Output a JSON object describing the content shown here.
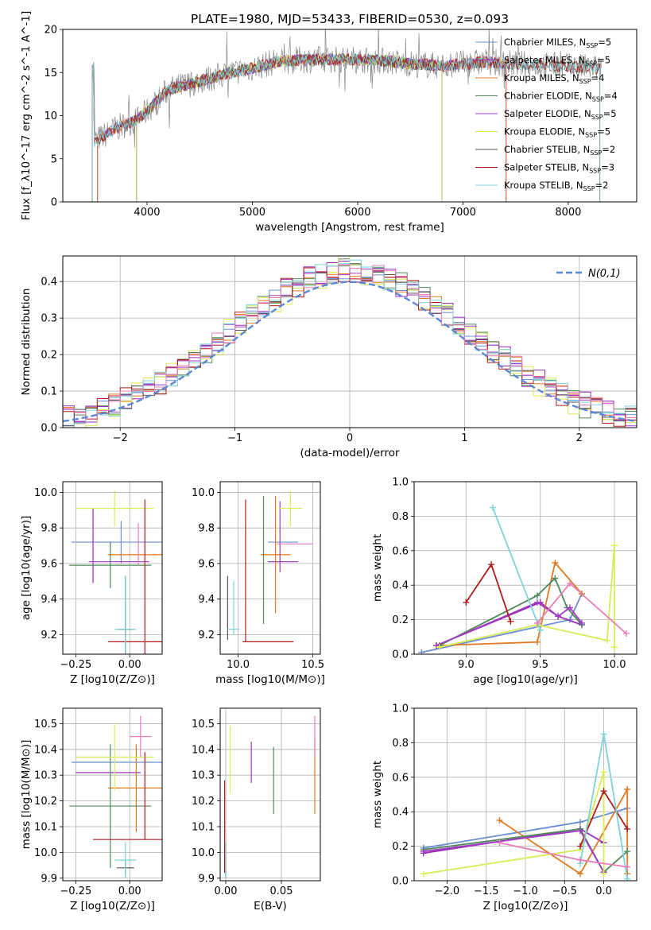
{
  "figure": {
    "title": "PLATE=1980, MJD=53433, FIBERID=0530, z=0.093"
  },
  "palette": {
    "Chabrier MILES": "#6b8fd6",
    "Salpeter MILES": "#9a2db5",
    "Kroupa MILES": "#e07b20",
    "Chabrier ELODIE": "#4f8a5a",
    "Salpeter ELODIE": "#a23bc4",
    "Kroupa ELODIE": "#d7ec59",
    "Chabrier STELIB": "#555555",
    "Salpeter STELIB": "#b01c1c",
    "Kroupa STELIB": "#7dd3d8",
    "pink": "#e87fb8",
    "normal_curve": "#5b86d6"
  },
  "chart_data": [
    {
      "id": "spectrum",
      "type": "line",
      "xlabel": "wavelength [Angstrom, rest frame]",
      "ylabel": "Flux [f_λ10^-17 erg cm^-2 s^-1 A^-1]",
      "xlim": [
        3200,
        8650
      ],
      "ylim": [
        0,
        20
      ],
      "xticks": [
        4000,
        5000,
        6000,
        7000,
        8000
      ],
      "yticks": [
        0,
        5,
        10,
        15,
        20
      ],
      "grid": false,
      "legend_position": "top-right",
      "legend": [
        {
          "name": "Chabrier MILES",
          "label": "Chabrier MILES, N",
          "sub": "SSP",
          "n": "=5"
        },
        {
          "name": "Salpeter MILES",
          "label": "Salpeter MILES, N",
          "sub": "SSP",
          "n": "=5"
        },
        {
          "name": "Kroupa MILES",
          "label": "Kroupa MILES, N",
          "sub": "SSP",
          "n": "=4"
        },
        {
          "name": "Chabrier ELODIE",
          "label": "Chabrier ELODIE, N",
          "sub": "SSP",
          "n": "=4"
        },
        {
          "name": "Salpeter ELODIE",
          "label": "Salpeter ELODIE, N",
          "sub": "SSP",
          "n": "=5"
        },
        {
          "name": "Kroupa ELODIE",
          "label": "Kroupa ELODIE, N",
          "sub": "SSP",
          "n": "=5"
        },
        {
          "name": "Chabrier STELIB",
          "label": "Chabrier STELIB, N",
          "sub": "SSP",
          "n": "=2"
        },
        {
          "name": "Salpeter STELIB",
          "label": "Salpeter STELIB, N",
          "sub": "SSP",
          "n": "=3"
        },
        {
          "name": "Kroupa STELIB",
          "label": "Kroupa STELIB, N",
          "sub": "SSP",
          "n": "=2"
        }
      ],
      "continuum": [
        [
          3500,
          7.0
        ],
        [
          3700,
          8.5
        ],
        [
          3900,
          9.5
        ],
        [
          4000,
          10.5
        ],
        [
          4200,
          13.0
        ],
        [
          4500,
          14.0
        ],
        [
          4800,
          15.0
        ],
        [
          5000,
          15.5
        ],
        [
          5200,
          16.2
        ],
        [
          5500,
          16.5
        ],
        [
          6000,
          16.5
        ],
        [
          6300,
          16.3
        ],
        [
          6500,
          16.0
        ],
        [
          6800,
          15.8
        ],
        [
          7000,
          16.0
        ],
        [
          7200,
          16.2
        ],
        [
          7500,
          16.0
        ],
        [
          8000,
          15.7
        ],
        [
          8300,
          15.5
        ]
      ],
      "model_ranges": [
        {
          "name": "Chabrier MILES",
          "x0": 3530,
          "x1": 7410
        },
        {
          "name": "Salpeter MILES",
          "x0": 3530,
          "x1": 7410
        },
        {
          "name": "Kroupa MILES",
          "x0": 3530,
          "x1": 7410
        },
        {
          "name": "Chabrier ELODIE",
          "x0": 3900,
          "x1": 6800
        },
        {
          "name": "Salpeter ELODIE",
          "x0": 3900,
          "x1": 6800
        },
        {
          "name": "Kroupa ELODIE",
          "x0": 3900,
          "x1": 6800
        },
        {
          "name": "Chabrier STELIB",
          "x0": 3480,
          "x1": 8300
        },
        {
          "name": "Salpeter STELIB",
          "x0": 3480,
          "x1": 8300
        },
        {
          "name": "Kroupa STELIB",
          "x0": 3480,
          "x1": 8300
        }
      ]
    },
    {
      "id": "residuals",
      "type": "histogram",
      "xlabel": "(data-model)/error",
      "ylabel": "Normed distribution",
      "xlim": [
        -2.5,
        2.5
      ],
      "ylim": [
        0,
        0.47
      ],
      "xticks": [
        -2,
        -1,
        0,
        1,
        2
      ],
      "yticks": [
        0.0,
        0.1,
        0.2,
        0.3,
        0.4
      ],
      "grid": true,
      "legend_position": "top-right",
      "normal_label": "N(0,1)",
      "bins": 50,
      "series": [
        {
          "name": "Chabrier MILES",
          "jitter": 0.011
        },
        {
          "name": "Salpeter MILES",
          "jitter": 0.017
        },
        {
          "name": "Kroupa MILES",
          "jitter": 0.014
        },
        {
          "name": "Chabrier ELODIE",
          "jitter": 0.019
        },
        {
          "name": "Salpeter ELODIE",
          "jitter": 0.012
        },
        {
          "name": "Kroupa ELODIE",
          "jitter": 0.021
        },
        {
          "name": "Chabrier STELIB",
          "jitter": 0.013
        },
        {
          "name": "Salpeter STELIB",
          "jitter": 0.018
        },
        {
          "name": "Kroupa STELIB",
          "jitter": 0.016
        },
        {
          "name": "pink",
          "jitter": 0.015
        }
      ]
    },
    {
      "id": "age_vs_Z",
      "type": "errorbar",
      "xlabel": "Z [log10(Z/Z⊙)]",
      "ylabel": "age  [log10(age/yr)]",
      "xlim": [
        -0.31,
        0.15
      ],
      "ylim": [
        9.09,
        10.06
      ],
      "xticks": [
        -0.25,
        0.0
      ],
      "yticks": [
        9.2,
        9.4,
        9.6,
        9.8,
        10.0
      ],
      "grid": true,
      "points": [
        {
          "c": "Chabrier MILES",
          "x": -0.04,
          "xerr": 0.23,
          "y": 9.72,
          "yerr": 0.12
        },
        {
          "c": "Salpeter MILES",
          "x": -0.17,
          "xerr": 0.0,
          "y": 9.7,
          "yerr": 0.21
        },
        {
          "c": "Kroupa MILES",
          "x": 0.03,
          "xerr": 0.13,
          "y": 9.65,
          "yerr": 0.0
        },
        {
          "c": "Chabrier ELODIE",
          "x": -0.09,
          "xerr": 0.19,
          "y": 9.59,
          "yerr": 0.13
        },
        {
          "c": "Salpeter ELODIE",
          "x": -0.05,
          "xerr": 0.14,
          "y": 9.61,
          "yerr": 0.0
        },
        {
          "c": "Kroupa ELODIE",
          "x": -0.07,
          "xerr": 0.18,
          "y": 9.91,
          "yerr": 0.1
        },
        {
          "c": "Chabrier STELIB",
          "x": -0.02,
          "xerr": 0.04,
          "y": 9.23,
          "yerr": 0.3
        },
        {
          "c": "Salpeter STELIB",
          "x": 0.07,
          "xerr": 0.17,
          "y": 9.16,
          "yerr": 0.8
        },
        {
          "c": "Kroupa STELIB",
          "x": -0.02,
          "xerr": 0.05,
          "y": 9.23,
          "yerr": 0.3
        },
        {
          "c": "pink",
          "x": 0.04,
          "xerr": 0.0,
          "y": 9.71,
          "yerr": 0.12
        }
      ]
    },
    {
      "id": "age_vs_mass",
      "type": "errorbar",
      "xlabel": "mass [log10(M/M⊙)]",
      "ylabel": "",
      "xlim": [
        9.88,
        10.55
      ],
      "ylim": [
        9.09,
        10.06
      ],
      "xticks": [
        10.0,
        10.5
      ],
      "yticks": [
        9.2,
        9.4,
        9.6,
        9.8,
        10.0
      ],
      "grid": true,
      "points": [
        {
          "c": "Chabrier MILES",
          "x": 10.3,
          "xerr": 0.1,
          "y": 9.72,
          "yerr": 0.0
        },
        {
          "c": "Salpeter MILES",
          "x": 10.3,
          "xerr": 0.1,
          "y": 9.61,
          "yerr": 0.0
        },
        {
          "c": "Kroupa MILES",
          "x": 10.25,
          "xerr": 0.1,
          "y": 9.65,
          "yerr": 0.33
        },
        {
          "c": "Chabrier ELODIE",
          "x": 10.17,
          "xerr": 0.0,
          "y": 9.62,
          "yerr": 0.36
        },
        {
          "c": "Salpeter ELODIE",
          "x": 10.28,
          "xerr": 0.0,
          "y": 9.75,
          "yerr": 0.2
        },
        {
          "c": "Kroupa ELODIE",
          "x": 10.35,
          "xerr": 0.08,
          "y": 9.91,
          "yerr": 0.1
        },
        {
          "c": "Chabrier STELIB",
          "x": 9.93,
          "xerr": 0.0,
          "y": 9.35,
          "yerr": 0.18
        },
        {
          "c": "Salpeter STELIB",
          "x": 10.05,
          "xerr": 0.0,
          "y": 9.56,
          "yerr": 0.4
        },
        {
          "c": "Salpeter STELIB",
          "x": 10.2,
          "xerr": 0.17,
          "y": 9.16,
          "yerr": 0.0
        },
        {
          "c": "Kroupa STELIB",
          "x": 9.97,
          "xerr": 0.0,
          "y": 9.35,
          "yerr": 0.15
        },
        {
          "c": "Kroupa STELIB",
          "x": 9.97,
          "xerr": 0.04,
          "y": 9.23,
          "yerr": 0.0
        },
        {
          "c": "pink",
          "x": 10.38,
          "xerr": 0.12,
          "y": 9.71,
          "yerr": 0.0
        }
      ]
    },
    {
      "id": "weight_vs_age",
      "type": "line",
      "xlabel": "age  [log10(age/yr)]",
      "ylabel": "mass weight",
      "xlim": [
        8.65,
        10.15
      ],
      "ylim": [
        0,
        1.0
      ],
      "xticks": [
        9.0,
        9.5,
        10.0
      ],
      "yticks": [
        0.0,
        0.2,
        0.4,
        0.6,
        0.8,
        1.0
      ],
      "grid": true,
      "series": [
        {
          "c": "Chabrier MILES",
          "points": [
            [
              8.7,
              0.01
            ],
            [
              9.7,
              0.2
            ],
            [
              9.78,
              0.35
            ]
          ]
        },
        {
          "c": "Salpeter MILES",
          "points": [
            [
              8.8,
              0.05
            ],
            [
              9.5,
              0.3
            ],
            [
              9.62,
              0.22
            ],
            [
              9.78,
              0.17
            ]
          ]
        },
        {
          "c": "Kroupa MILES",
          "points": [
            [
              8.8,
              0.05
            ],
            [
              9.48,
              0.07
            ],
            [
              9.6,
              0.53
            ],
            [
              9.78,
              0.35
            ]
          ]
        },
        {
          "c": "Chabrier ELODIE",
          "points": [
            [
              8.82,
              0.05
            ],
            [
              9.48,
              0.34
            ],
            [
              9.6,
              0.44
            ],
            [
              9.68,
              0.27
            ],
            [
              9.78,
              0.17
            ]
          ]
        },
        {
          "c": "Salpeter ELODIE",
          "points": [
            [
              8.8,
              0.05
            ],
            [
              9.48,
              0.3
            ],
            [
              9.62,
              0.22
            ],
            [
              9.7,
              0.27
            ],
            [
              9.78,
              0.18
            ]
          ]
        },
        {
          "c": "Kroupa ELODIE",
          "points": [
            [
              8.82,
              0.04
            ],
            [
              9.48,
              0.17
            ],
            [
              9.95,
              0.08
            ],
            [
              10.0,
              0.63
            ],
            [
              10.0,
              0.04
            ]
          ]
        },
        {
          "c": "Salpeter STELIB",
          "points": [
            [
              9.0,
              0.3
            ],
            [
              9.17,
              0.52
            ],
            [
              9.3,
              0.19
            ]
          ]
        },
        {
          "c": "Kroupa STELIB",
          "points": [
            [
              9.18,
              0.85
            ],
            [
              9.5,
              0.14
            ]
          ]
        },
        {
          "c": "pink",
          "points": [
            [
              9.48,
              0.18
            ],
            [
              9.7,
              0.41
            ],
            [
              10.08,
              0.12
            ]
          ]
        }
      ]
    },
    {
      "id": "mass_vs_Z",
      "type": "errorbar",
      "xlabel": "Z [log10(Z/Z⊙)]",
      "ylabel": "mass [log10(M/M⊙)]",
      "xlim": [
        -0.31,
        0.15
      ],
      "ylim": [
        9.89,
        10.56
      ],
      "xticks": [
        -0.25,
        0.0
      ],
      "yticks": [
        9.9,
        10.0,
        10.1,
        10.2,
        10.3,
        10.4,
        10.5
      ],
      "grid": true,
      "points": [
        {
          "c": "Chabrier MILES",
          "x": -0.04,
          "xerr": 0.23,
          "y": 10.35,
          "yerr": 0.0
        },
        {
          "c": "Salpeter MILES",
          "x": -0.1,
          "xerr": 0.15,
          "y": 10.31,
          "yerr": 0.0
        },
        {
          "c": "Kroupa MILES",
          "x": 0.03,
          "xerr": 0.13,
          "y": 10.25,
          "yerr": 0.17
        },
        {
          "c": "Chabrier ELODIE",
          "x": -0.09,
          "xerr": 0.19,
          "y": 10.18,
          "yerr": 0.24
        },
        {
          "c": "Kroupa ELODIE",
          "x": -0.07,
          "xerr": 0.18,
          "y": 10.37,
          "yerr": 0.13
        },
        {
          "c": "Chabrier STELIB",
          "x": -0.02,
          "xerr": 0.04,
          "y": 9.94,
          "yerr": 0.03
        },
        {
          "c": "Salpeter STELIB",
          "x": 0.07,
          "xerr": 0.0,
          "y": 10.22,
          "yerr": 0.17
        },
        {
          "c": "Salpeter STELIB",
          "x": 0.0,
          "xerr": 0.17,
          "y": 10.05,
          "yerr": 0.0
        },
        {
          "c": "Kroupa STELIB",
          "x": -0.02,
          "xerr": 0.05,
          "y": 9.97,
          "yerr": 0.07
        },
        {
          "c": "pink",
          "x": 0.05,
          "xerr": 0.05,
          "y": 10.45,
          "yerr": 0.08
        }
      ]
    },
    {
      "id": "mass_vs_EBV",
      "type": "errorbar",
      "xlabel": "E(B-V)",
      "ylabel": "",
      "xlim": [
        -0.005,
        0.085
      ],
      "ylim": [
        9.89,
        10.56
      ],
      "xticks": [
        0.0,
        0.05
      ],
      "yticks": [
        9.9,
        10.0,
        10.1,
        10.2,
        10.3,
        10.4,
        10.5
      ],
      "grid": true,
      "points": [
        {
          "c": "Kroupa ELODIE",
          "x": 0.004,
          "y": 10.36,
          "yerr": 0.13
        },
        {
          "c": "Salpeter ELODIE",
          "x": 0.023,
          "y": 10.35,
          "yerr": 0.08
        },
        {
          "c": "Chabrier ELODIE",
          "x": 0.043,
          "y": 10.28,
          "yerr": 0.13
        },
        {
          "c": "Kroupa MILES",
          "x": 0.08,
          "y": 10.3,
          "yerr": 0.15
        },
        {
          "c": "pink",
          "x": 0.08,
          "y": 10.45,
          "yerr": 0.08
        },
        {
          "c": "Salpeter STELIB",
          "x": -0.001,
          "y": 10.1,
          "yerr": 0.18
        },
        {
          "c": "Chabrier STELIB",
          "x": 0.0,
          "y": 9.97,
          "yerr": 0.07
        },
        {
          "c": "Kroupa STELIB",
          "x": 0.0,
          "y": 9.97,
          "yerr": 0.07
        }
      ]
    },
    {
      "id": "weight_vs_Z",
      "type": "line",
      "xlabel": "Z [log10(Z/Z⊙)]",
      "ylabel": "mass weight",
      "xlim": [
        -2.42,
        0.42
      ],
      "ylim": [
        0,
        1.0
      ],
      "xticks": [
        -2.0,
        -1.5,
        -1.0,
        -0.5,
        0.0
      ],
      "yticks": [
        0.0,
        0.2,
        0.4,
        0.6,
        0.8,
        1.0
      ],
      "grid": true,
      "series": [
        {
          "c": "Chabrier MILES",
          "points": [
            [
              -2.3,
              0.19
            ],
            [
              -0.3,
              0.34
            ],
            [
              0.3,
              0.42
            ]
          ]
        },
        {
          "c": "Salpeter MILES",
          "points": [
            [
              -2.3,
              0.16
            ],
            [
              -0.3,
              0.3
            ],
            [
              0.0,
              0.22
            ]
          ]
        },
        {
          "c": "Kroupa MILES",
          "points": [
            [
              -1.33,
              0.35
            ],
            [
              -0.3,
              0.04
            ],
            [
              0.3,
              0.53
            ],
            [
              0.3,
              0.04
            ]
          ]
        },
        {
          "c": "Chabrier ELODIE",
          "points": [
            [
              -2.3,
              0.18
            ],
            [
              -0.3,
              0.3
            ],
            [
              0.0,
              0.05
            ],
            [
              0.3,
              0.17
            ]
          ]
        },
        {
          "c": "Salpeter ELODIE",
          "points": [
            [
              -2.3,
              0.17
            ],
            [
              -0.3,
              0.29
            ],
            [
              0.0,
              0.05
            ]
          ]
        },
        {
          "c": "Kroupa ELODIE",
          "points": [
            [
              -2.3,
              0.04
            ],
            [
              -0.3,
              0.18
            ],
            [
              0.0,
              0.63
            ],
            [
              0.0,
              0.04
            ]
          ]
        },
        {
          "c": "Salpeter STELIB",
          "points": [
            [
              -0.3,
              0.2
            ],
            [
              0.0,
              0.52
            ],
            [
              0.3,
              0.3
            ]
          ]
        },
        {
          "c": "Kroupa STELIB",
          "points": [
            [
              -0.3,
              0.1
            ],
            [
              0.0,
              0.85
            ],
            [
              0.3,
              0.01
            ]
          ]
        },
        {
          "c": "pink",
          "points": [
            [
              -1.33,
              0.22
            ],
            [
              -0.3,
              0.12
            ],
            [
              0.3,
              0.08
            ]
          ]
        }
      ]
    }
  ]
}
